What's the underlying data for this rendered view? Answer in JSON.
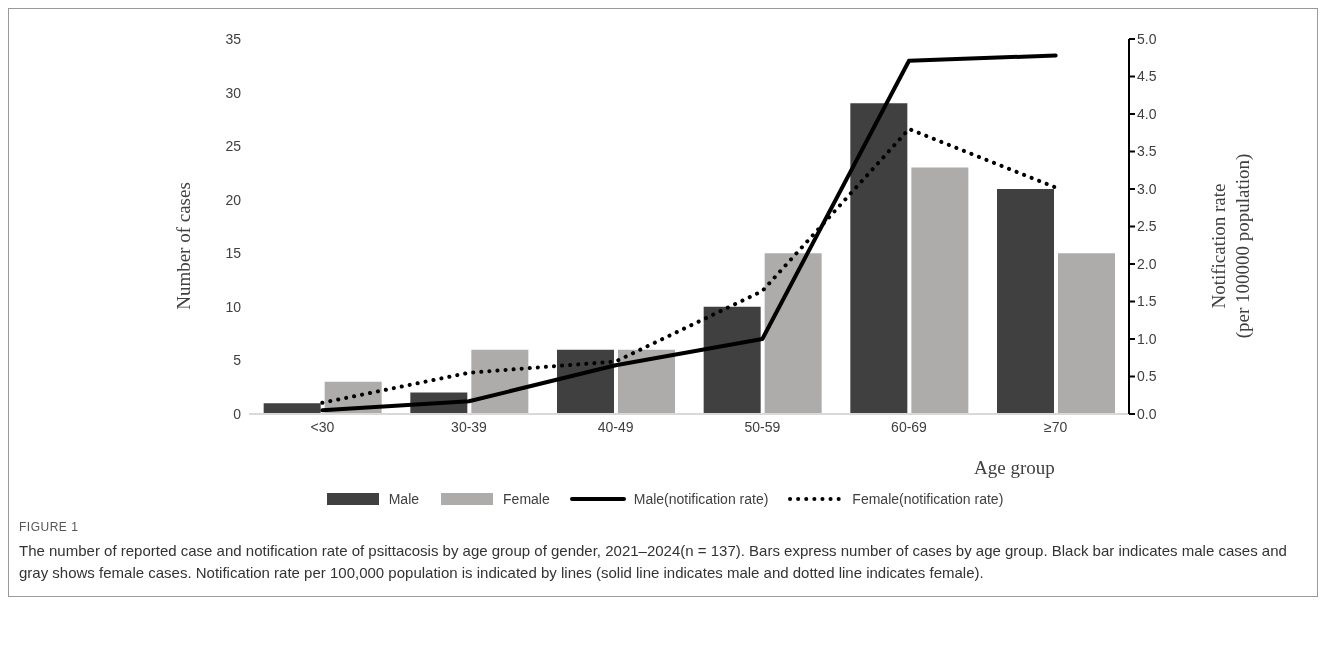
{
  "chart_data": {
    "type": "bar",
    "ylabel": "Number of cases",
    "y2label": "Notification rate\n(per 100000 population)",
    "xlabel": "Age group",
    "categories": [
      "<30",
      "30-39",
      "40-49",
      "50-59",
      "60-69",
      "≥70"
    ],
    "series": [
      {
        "name": "Male",
        "color": "#404040",
        "values": [
          1,
          2,
          6,
          10,
          29,
          21
        ]
      },
      {
        "name": "Female",
        "color": "#aeabab",
        "values": [
          3,
          6,
          6,
          15,
          23,
          15
        ]
      },
      {
        "name": "Male(notification rate)",
        "type": "line",
        "axis": "y2",
        "color": "#000000",
        "line_style": "solid",
        "values": [
          0.05,
          0.17,
          0.65,
          1.0,
          4.71,
          4.78
        ]
      },
      {
        "name": "Female(notification rate)",
        "type": "line",
        "axis": "y2",
        "color": "#000000",
        "line_style": "dotted",
        "values": [
          0.15,
          0.55,
          0.7,
          1.64,
          3.8,
          3.02
        ]
      }
    ],
    "ylim": [
      0,
      35
    ],
    "yticks": [
      0,
      5,
      10,
      15,
      20,
      25,
      30,
      35
    ],
    "y2lim": [
      0,
      5
    ],
    "y2ticks": [
      {
        "value": 0,
        "label": "0.0"
      },
      {
        "value": 0.5,
        "label": "0.5"
      },
      {
        "value": 1,
        "label": "1.0"
      },
      {
        "value": 1.5,
        "label": "1.5"
      },
      {
        "value": 2,
        "label": "2.0"
      },
      {
        "value": 2.5,
        "label": "2.5"
      },
      {
        "value": 3,
        "label": "3.0"
      },
      {
        "value": 3.5,
        "label": "3.5"
      },
      {
        "value": 4,
        "label": "4.0"
      },
      {
        "value": 4.5,
        "label": "4.5"
      },
      {
        "value": 5,
        "label": "5.0"
      }
    ],
    "grid": false,
    "legend": "bottom",
    "marker": "none",
    "annotations": [
      "FIGURE 1",
      "The number of reported case and notification rate of psittacosis by age group of gender, 2021–2024(n = 137). Bars express number of cases by age group. Black bar indicates male cases and gray shows female cases. Notification rate per 100,000 population is indicated by lines (solid line indicates male and dotted line indicates female)."
    ]
  }
}
